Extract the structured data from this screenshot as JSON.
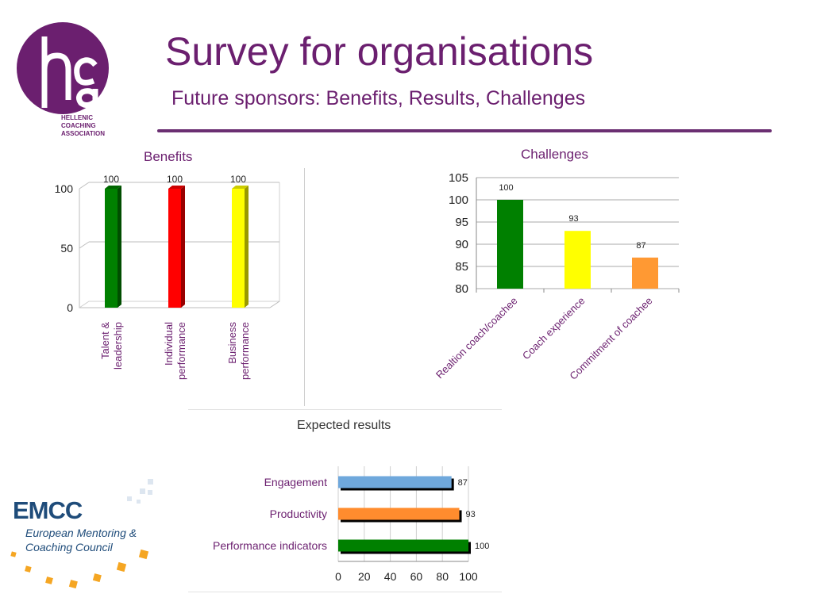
{
  "slide": {
    "title": "Survey for organisations",
    "subtitle": "Future sponsors:  Benefits, Results, Challenges"
  },
  "logo_hca": {
    "icon": "hca-circle-logo-icon",
    "line1": "HELLENIC",
    "line2": "COACHING",
    "line3": "ASSOCIATION",
    "color": "#6b1f6f"
  },
  "logo_emcc": {
    "name": "EMCC",
    "line1": "European Mentoring &",
    "line2": "Coaching Council",
    "color": "#1f4c7a",
    "accent": "#f5a623"
  },
  "chart_data": [
    {
      "type": "bar",
      "title": "Benefits",
      "categories": [
        "Talent & leadership",
        "Individual performance",
        "Business performance"
      ],
      "values": [
        100,
        100,
        100
      ],
      "colors": [
        "#008000",
        "#ff0000",
        "#ffff00"
      ],
      "yticks": [
        0,
        50,
        100
      ],
      "ylim": [
        0,
        100
      ],
      "grid": true,
      "legend": "none"
    },
    {
      "type": "bar",
      "title": "Challenges",
      "categories": [
        "Realtion coach/coachee",
        "Coach experience",
        "Commitment of coachee"
      ],
      "values": [
        100,
        93,
        87
      ],
      "colors": [
        "#008000",
        "#ffff00",
        "#ff9933"
      ],
      "yticks": [
        80,
        85,
        90,
        95,
        100,
        105
      ],
      "ylim": [
        80,
        105
      ],
      "grid": true,
      "legend": "none"
    },
    {
      "type": "bar",
      "orientation": "horizontal",
      "title": "Expected results",
      "categories": [
        "Engagement",
        "Productivity",
        "Performance indicators"
      ],
      "values": [
        87,
        93,
        100
      ],
      "colors": [
        "#6fa8dc",
        "#ff8c2e",
        "#008000"
      ],
      "xticks": [
        0,
        20,
        40,
        60,
        80,
        100
      ],
      "xlim": [
        0,
        100
      ],
      "grid": true,
      "legend": "none"
    }
  ]
}
